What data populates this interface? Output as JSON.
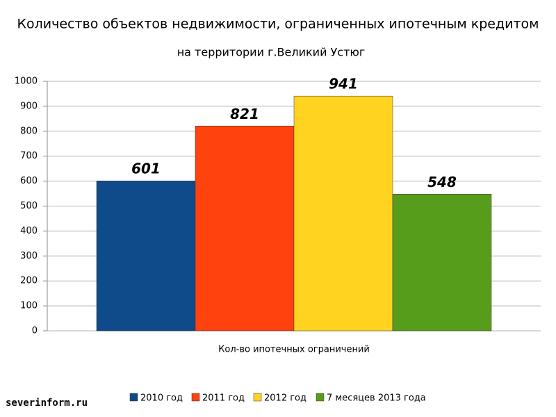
{
  "chart_data": {
    "type": "bar",
    "title": "Количество объектов недвижимости, ограниченных ипотечным кредитом",
    "subtitle": "на территории г.Великий Устюг",
    "categories": [
      "Кол-во ипотечных ограничений"
    ],
    "series": [
      {
        "name": "2010 год",
        "color": "#0f4a8a",
        "values": [
          601
        ]
      },
      {
        "name": "2011 год",
        "color": "#ff420e",
        "values": [
          821
        ]
      },
      {
        "name": "2012 год",
        "color": "#ffd320",
        "values": [
          941
        ]
      },
      {
        "name": "7 месяцев 2013 года",
        "color": "#579d1c",
        "values": [
          548
        ]
      }
    ],
    "ylim": [
      0,
      1000
    ],
    "yticks": [
      0,
      100,
      200,
      300,
      400,
      500,
      600,
      700,
      800,
      900,
      1000
    ],
    "grid": true,
    "legend": "bottom",
    "watermark": "severinform.ru"
  }
}
